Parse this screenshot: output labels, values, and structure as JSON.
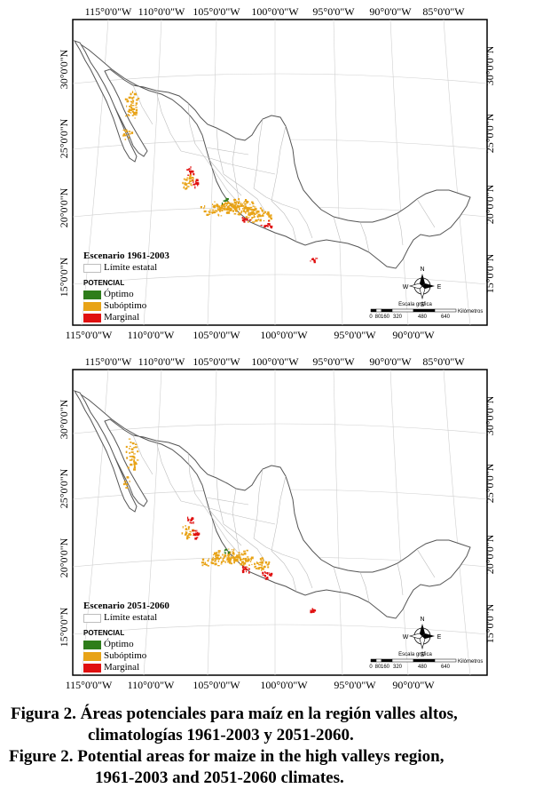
{
  "panels": [
    {
      "scenario_label": "Escenario 1961-2003",
      "top_ticks": [
        "115°0'0\"W",
        "110°0'0\"W",
        "105°0'0\"W",
        "100°0'0\"W",
        "95°0'0\"W",
        "90°0'0\"W",
        "85°0'0\"W"
      ],
      "bottom_ticks": [
        "115°0'0\"W",
        "110°0'0\"W",
        "105°0'0\"W",
        "100°0'0\"W",
        "95°0'0\"W",
        "90°0'0\"W"
      ],
      "left_ticks": [
        "30°0'0\"N",
        "25°0'0\"N",
        "20°0'0\"N",
        "15°0'0\"N"
      ],
      "right_ticks": [
        "30°0'0\"N",
        "25°0'0\"N",
        "20°0'0\"N",
        "15°0'0\"N"
      ]
    },
    {
      "scenario_label": "Escenario 2051-2060",
      "top_ticks": [
        "115°0'0\"W",
        "110°0'0\"W",
        "105°0'0\"W",
        "100°0'0\"W",
        "95°0'0\"W",
        "90°0'0\"W",
        "85°0'0\"W"
      ],
      "bottom_ticks": [
        "115°0'0\"W",
        "110°0'0\"W",
        "105°0'0\"W",
        "100°0'0\"W",
        "95°0'0\"W",
        "90°0'0\"W"
      ],
      "left_ticks": [
        "30°0'0\"N",
        "25°0'0\"N",
        "20°0'0\"N",
        "15°0'0\"N"
      ],
      "right_ticks": [
        "30°0'0\"N",
        "25°0'0\"N",
        "20°0'0\"N",
        "15°0'0\"N"
      ]
    }
  ],
  "legend": {
    "limite": "Límite estatal",
    "potencial": "POTENCIAL",
    "optimo": "Óptimo",
    "suboptimo": "Subóptimo",
    "marginal": "Marginal"
  },
  "compass": {
    "n": "N",
    "s": "S",
    "e": "E",
    "w": "W"
  },
  "scale": {
    "title": "Escala gráfica",
    "numbers": [
      "0",
      "80",
      "160",
      "320",
      "480",
      "640"
    ],
    "unit": "Kilómetros"
  },
  "colors": {
    "optimo": "#2e7d1a",
    "suboptimo": "#e8a317",
    "marginal": "#e01010",
    "state_boundary": "#bdbdbd"
  },
  "caption": {
    "line1": "Figura 2. Áreas potenciales para maíz en la región valles altos,",
    "line2": "climatologías 1961-2003 y 2051-2060.",
    "line3": "Figure 2. Potential areas for maize in the high valleys region,",
    "line4": "1961-2003 and 2051-2060 climates."
  }
}
